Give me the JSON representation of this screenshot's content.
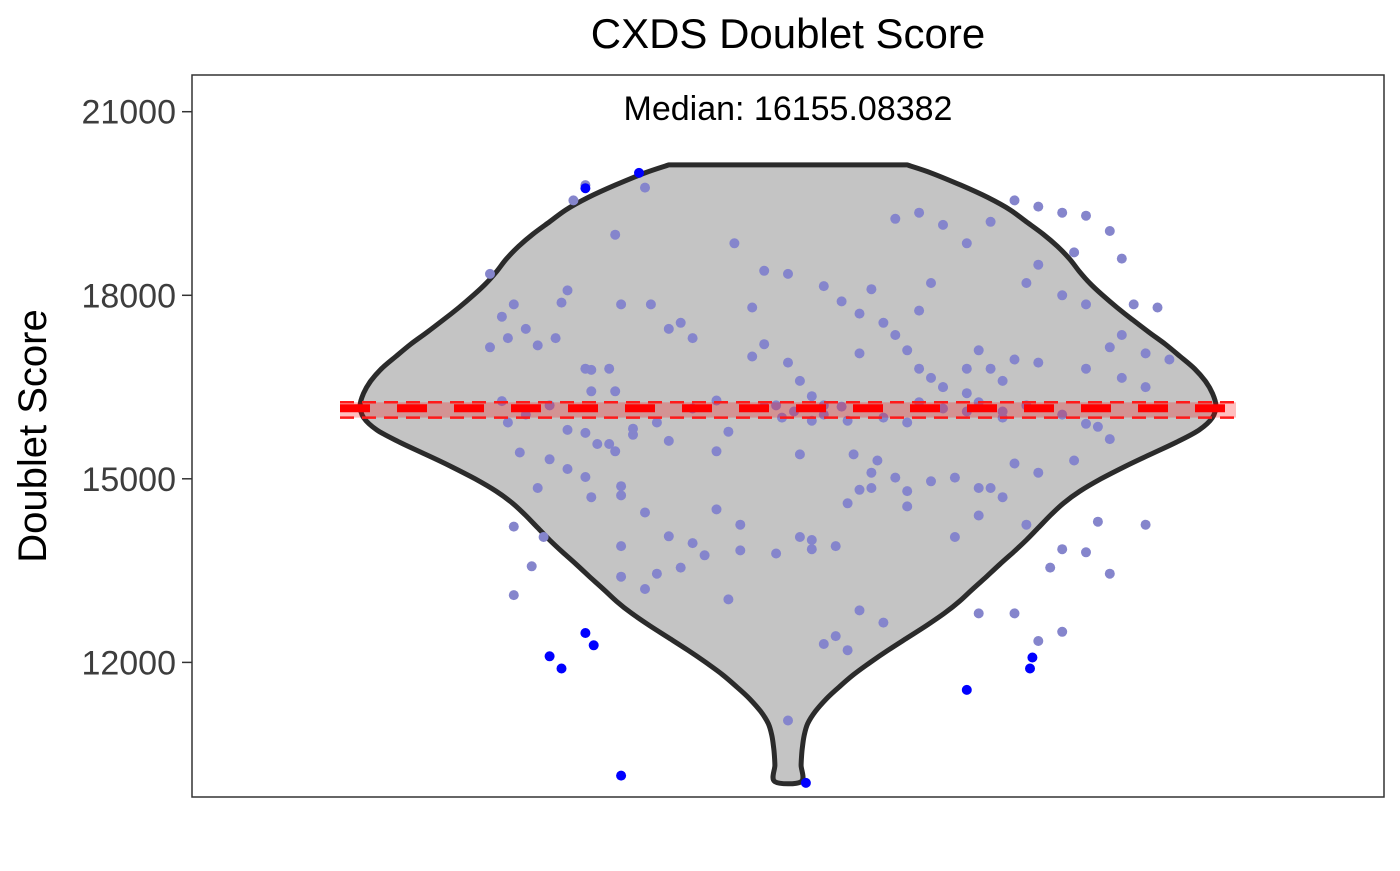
{
  "chart_data": {
    "type": "violin",
    "title": "CXDS Doublet Score",
    "subtitle": "Median: 16155.08382",
    "xlabel": "",
    "ylabel": "Doublet Score",
    "ylim": [
      9800,
      21600
    ],
    "yticks": [
      12000,
      15000,
      18000,
      21000
    ],
    "ytick_labels": [
      "12000",
      "15000",
      "18000",
      "21000"
    ],
    "median": 16155.08382,
    "band_upper": 16250,
    "band_lower": 16000,
    "grid": false,
    "violin_outline": [
      [
        20130,
        0.2
      ],
      [
        20000,
        0.24
      ],
      [
        19800,
        0.29
      ],
      [
        19600,
        0.335
      ],
      [
        19400,
        0.372
      ],
      [
        19200,
        0.4
      ],
      [
        19000,
        0.428
      ],
      [
        18800,
        0.452
      ],
      [
        18600,
        0.472
      ],
      [
        18400,
        0.488
      ],
      [
        18200,
        0.506
      ],
      [
        18000,
        0.528
      ],
      [
        17800,
        0.552
      ],
      [
        17600,
        0.578
      ],
      [
        17400,
        0.605
      ],
      [
        17200,
        0.633
      ],
      [
        17000,
        0.658
      ],
      [
        16800,
        0.682
      ],
      [
        16600,
        0.7
      ],
      [
        16400,
        0.712
      ],
      [
        16200,
        0.718
      ],
      [
        16000,
        0.712
      ],
      [
        15800,
        0.69
      ],
      [
        15600,
        0.652
      ],
      [
        15400,
        0.608
      ],
      [
        15200,
        0.565
      ],
      [
        15000,
        0.525
      ],
      [
        14800,
        0.49
      ],
      [
        14600,
        0.462
      ],
      [
        14400,
        0.44
      ],
      [
        14200,
        0.42
      ],
      [
        14000,
        0.4
      ],
      [
        13800,
        0.378
      ],
      [
        13600,
        0.355
      ],
      [
        13400,
        0.333
      ],
      [
        13200,
        0.31
      ],
      [
        13000,
        0.288
      ],
      [
        12800,
        0.262
      ],
      [
        12600,
        0.232
      ],
      [
        12400,
        0.2
      ],
      [
        12200,
        0.168
      ],
      [
        12000,
        0.138
      ],
      [
        11800,
        0.11
      ],
      [
        11600,
        0.086
      ],
      [
        11400,
        0.064
      ],
      [
        11200,
        0.046
      ],
      [
        11000,
        0.033
      ],
      [
        10800,
        0.027
      ],
      [
        10600,
        0.024
      ],
      [
        10500,
        0.023
      ],
      [
        10320,
        0.022
      ],
      [
        10050,
        0.022
      ]
    ],
    "colors": {
      "violin_fill": "#c4c4c4",
      "violin_stroke": "#2b2b2b",
      "point": "#8585cc",
      "outlier": "#0000ff",
      "median_band": "#ff0000",
      "band_lines": "#ff1a1a"
    },
    "points": [
      [
        -0.17,
        19800
      ],
      [
        -0.18,
        19550
      ],
      [
        -0.145,
        18990
      ],
      [
        -0.25,
        18350
      ],
      [
        -0.185,
        18080
      ],
      [
        -0.19,
        17880
      ],
      [
        -0.23,
        17850
      ],
      [
        -0.24,
        17650
      ],
      [
        -0.22,
        17450
      ],
      [
        -0.195,
        17300
      ],
      [
        -0.235,
        17300
      ],
      [
        -0.21,
        17180
      ],
      [
        -0.25,
        17150
      ],
      [
        -0.17,
        16800
      ],
      [
        -0.165,
        16780
      ],
      [
        -0.15,
        16800
      ],
      [
        -0.165,
        16430
      ],
      [
        -0.145,
        16430
      ],
      [
        -0.24,
        16270
      ],
      [
        -0.2,
        16200
      ],
      [
        -0.22,
        16050
      ],
      [
        -0.235,
        15920
      ],
      [
        -0.185,
        15800
      ],
      [
        -0.17,
        15750
      ],
      [
        -0.13,
        15720
      ],
      [
        -0.15,
        15570
      ],
      [
        -0.16,
        15570
      ],
      [
        -0.145,
        15450
      ],
      [
        -0.225,
        15430
      ],
      [
        -0.2,
        15320
      ],
      [
        -0.185,
        15160
      ],
      [
        -0.17,
        15030
      ],
      [
        -0.21,
        14850
      ],
      [
        -0.165,
        14700
      ],
      [
        -0.14,
        14880
      ],
      [
        -0.23,
        14220
      ],
      [
        -0.205,
        14050
      ],
      [
        -0.14,
        13900
      ],
      [
        -0.215,
        13570
      ],
      [
        -0.23,
        13100
      ],
      [
        -0.12,
        19760
      ],
      [
        -0.045,
        18850
      ],
      [
        -0.02,
        18400
      ],
      [
        0.0,
        18350
      ],
      [
        0.03,
        18150
      ],
      [
        0.045,
        17900
      ],
      [
        0.06,
        17700
      ],
      [
        0.08,
        17550
      ],
      [
        0.09,
        17350
      ],
      [
        0.1,
        17100
      ],
      [
        0.11,
        16800
      ],
      [
        0.12,
        16650
      ],
      [
        0.13,
        16500
      ],
      [
        0.15,
        16400
      ],
      [
        -0.14,
        17850
      ],
      [
        -0.115,
        17850
      ],
      [
        -0.1,
        17450
      ],
      [
        -0.03,
        17800
      ],
      [
        -0.06,
        16280
      ],
      [
        -0.08,
        16150
      ],
      [
        -0.01,
        16200
      ],
      [
        0.005,
        16100
      ],
      [
        0.02,
        16350
      ],
      [
        0.045,
        16180
      ],
      [
        0.08,
        16000
      ],
      [
        0.1,
        15920
      ],
      [
        -0.11,
        15920
      ],
      [
        -0.13,
        15820
      ],
      [
        -0.1,
        15620
      ],
      [
        -0.05,
        15770
      ],
      [
        -0.02,
        16180
      ],
      [
        0.03,
        16050
      ],
      [
        0.055,
        15400
      ],
      [
        0.075,
        15300
      ],
      [
        0.09,
        15020
      ],
      [
        0.12,
        14960
      ],
      [
        0.14,
        15020
      ],
      [
        0.16,
        14850
      ],
      [
        -0.14,
        14730
      ],
      [
        -0.12,
        14450
      ],
      [
        -0.1,
        14060
      ],
      [
        -0.06,
        14500
      ],
      [
        -0.04,
        14250
      ],
      [
        0.01,
        14050
      ],
      [
        0.04,
        13900
      ],
      [
        0.06,
        14820
      ],
      [
        0.07,
        14850
      ],
      [
        0.1,
        14550
      ],
      [
        -0.08,
        13950
      ],
      [
        -0.07,
        13750
      ],
      [
        -0.09,
        13550
      ],
      [
        -0.04,
        13830
      ],
      [
        -0.01,
        13780
      ],
      [
        0.02,
        13850
      ],
      [
        -0.11,
        13450
      ],
      [
        -0.12,
        13200
      ],
      [
        -0.14,
        13400
      ],
      [
        -0.05,
        13030
      ],
      [
        0.06,
        12850
      ],
      [
        0.04,
        12430
      ],
      [
        0.03,
        12300
      ],
      [
        0.0,
        11050
      ],
      [
        0.09,
        19250
      ],
      [
        0.11,
        19350
      ],
      [
        0.13,
        19150
      ],
      [
        0.15,
        18850
      ],
      [
        0.17,
        19200
      ],
      [
        0.19,
        19550
      ],
      [
        0.21,
        19450
      ],
      [
        0.23,
        19350
      ],
      [
        0.25,
        19300
      ],
      [
        0.27,
        19050
      ],
      [
        0.21,
        18500
      ],
      [
        0.24,
        18700
      ],
      [
        0.28,
        18600
      ],
      [
        0.2,
        18200
      ],
      [
        0.23,
        18000
      ],
      [
        0.25,
        17850
      ],
      [
        0.29,
        17850
      ],
      [
        0.31,
        17800
      ],
      [
        0.28,
        17350
      ],
      [
        0.27,
        17150
      ],
      [
        0.3,
        17050
      ],
      [
        0.32,
        16950
      ],
      [
        0.21,
        16900
      ],
      [
        0.25,
        16800
      ],
      [
        0.28,
        16650
      ],
      [
        0.3,
        16500
      ],
      [
        0.19,
        16950
      ],
      [
        0.15,
        16800
      ],
      [
        0.13,
        16500
      ],
      [
        0.16,
        16250
      ],
      [
        0.18,
        16100
      ],
      [
        0.2,
        16200
      ],
      [
        0.23,
        16050
      ],
      [
        0.25,
        15900
      ],
      [
        0.26,
        15850
      ],
      [
        0.27,
        15650
      ],
      [
        0.24,
        15300
      ],
      [
        0.19,
        15250
      ],
      [
        0.21,
        15100
      ],
      [
        0.17,
        14850
      ],
      [
        0.18,
        14700
      ],
      [
        0.16,
        14400
      ],
      [
        0.14,
        14050
      ],
      [
        0.2,
        14250
      ],
      [
        0.23,
        13850
      ],
      [
        0.22,
        13550
      ],
      [
        0.25,
        13800
      ],
      [
        0.27,
        13450
      ],
      [
        0.26,
        14300
      ],
      [
        0.3,
        14250
      ],
      [
        0.23,
        12500
      ],
      [
        0.21,
        12350
      ],
      [
        0.19,
        12800
      ],
      [
        0.16,
        12800
      ],
      [
        0.08,
        12650
      ],
      [
        0.05,
        12200
      ],
      [
        -0.02,
        17200
      ],
      [
        0.0,
        16900
      ],
      [
        -0.03,
        17000
      ],
      [
        0.01,
        16600
      ],
      [
        0.03,
        16200
      ],
      [
        0.06,
        17050
      ],
      [
        0.07,
        18100
      ],
      [
        0.11,
        17750
      ],
      [
        0.12,
        18200
      ],
      [
        0.16,
        17100
      ],
      [
        0.17,
        16800
      ],
      [
        0.18,
        16600
      ],
      [
        -0.09,
        17550
      ],
      [
        -0.08,
        17300
      ],
      [
        -0.06,
        15450
      ],
      [
        0.02,
        15950
      ],
      [
        0.05,
        15950
      ],
      [
        0.11,
        16250
      ],
      [
        0.15,
        16100
      ],
      [
        0.18,
        16000
      ],
      [
        0.13,
        16150
      ],
      [
        -0.005,
        16000
      ],
      [
        0.01,
        15400
      ],
      [
        0.07,
        15100
      ],
      [
        0.1,
        14800
      ],
      [
        0.05,
        14600
      ],
      [
        0.02,
        14000
      ]
    ],
    "outliers": [
      [
        -0.125,
        20000
      ],
      [
        -0.17,
        19750
      ],
      [
        -0.17,
        12480
      ],
      [
        -0.163,
        12280
      ],
      [
        -0.2,
        12100
      ],
      [
        -0.19,
        11900
      ],
      [
        -0.14,
        10150
      ],
      [
        0.015,
        10030
      ],
      [
        0.15,
        11550
      ],
      [
        0.203,
        11900
      ],
      [
        0.205,
        12080
      ]
    ]
  }
}
